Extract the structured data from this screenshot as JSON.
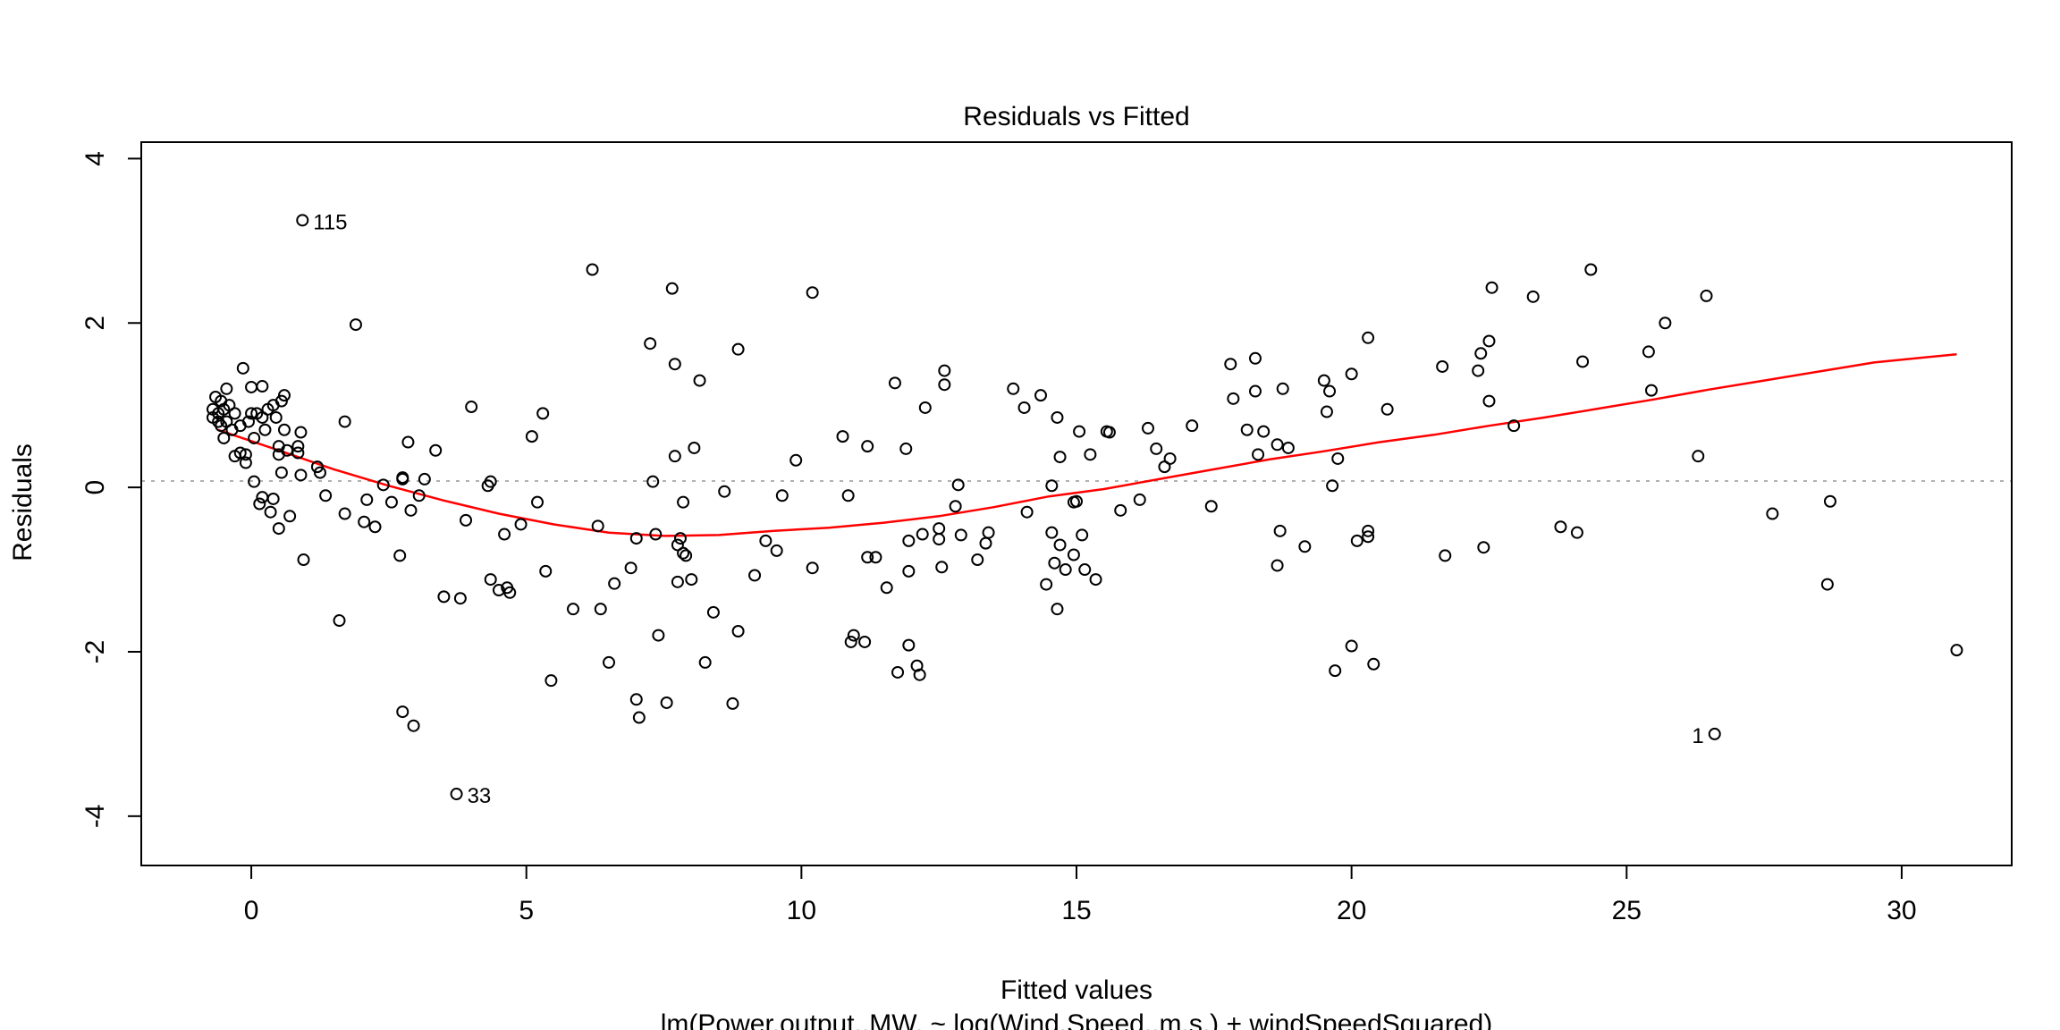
{
  "chart_data": {
    "type": "scatter",
    "title": "Residuals vs Fitted",
    "xlabel": "Fitted values",
    "ylabel": "Residuals",
    "subtitle": "lm(Power.output..MW. ~ log(Wind.Speed..m.s.) + windSpeedSquared)",
    "xlim": [
      -2,
      32
    ],
    "ylim": [
      -4.6,
      4.2
    ],
    "xticks": [
      0,
      5,
      10,
      15,
      20,
      25,
      30
    ],
    "yticks": [
      -4,
      -2,
      0,
      2,
      4
    ],
    "reference_line": 0,
    "colors": {
      "points": "#000000",
      "smoother": "#ff0000",
      "reference": "#b0b0b0"
    },
    "labeled_points": [
      {
        "label": "115",
        "x": 0.93,
        "y": 3.25,
        "side": "right"
      },
      {
        "label": "33",
        "x": 3.73,
        "y": -3.73,
        "side": "right"
      },
      {
        "label": "1",
        "x": 26.6,
        "y": -3.0,
        "side": "left"
      }
    ],
    "smoother": [
      [
        -0.6,
        0.7
      ],
      [
        0.5,
        0.45
      ],
      [
        1.5,
        0.22
      ],
      [
        2.5,
        0.02
      ],
      [
        3.5,
        -0.16
      ],
      [
        4.5,
        -0.32
      ],
      [
        5.5,
        -0.45
      ],
      [
        6.5,
        -0.55
      ],
      [
        7.5,
        -0.59
      ],
      [
        8.5,
        -0.58
      ],
      [
        9.5,
        -0.53
      ],
      [
        10.5,
        -0.49
      ],
      [
        11.5,
        -0.43
      ],
      [
        12.5,
        -0.35
      ],
      [
        13.5,
        -0.24
      ],
      [
        14.5,
        -0.11
      ],
      [
        15.5,
        -0.02
      ],
      [
        16.5,
        0.1
      ],
      [
        17.5,
        0.22
      ],
      [
        18.5,
        0.34
      ],
      [
        19.5,
        0.44
      ],
      [
        20.5,
        0.55
      ],
      [
        21.5,
        0.64
      ],
      [
        22.5,
        0.75
      ],
      [
        23.5,
        0.85
      ],
      [
        24.5,
        0.96
      ],
      [
        25.5,
        1.07
      ],
      [
        26.5,
        1.19
      ],
      [
        27.5,
        1.3
      ],
      [
        28.5,
        1.41
      ],
      [
        29.5,
        1.52
      ],
      [
        31.0,
        1.62
      ]
    ],
    "points": [
      [
        -0.7,
        0.95
      ],
      [
        -0.7,
        0.85
      ],
      [
        -0.65,
        1.1
      ],
      [
        -0.6,
        0.8
      ],
      [
        -0.6,
        0.9
      ],
      [
        -0.55,
        1.05
      ],
      [
        -0.55,
        0.75
      ],
      [
        -0.5,
        0.95
      ],
      [
        -0.5,
        0.6
      ],
      [
        -0.45,
        1.2
      ],
      [
        -0.45,
        0.8
      ],
      [
        -0.4,
        1.0
      ],
      [
        -0.35,
        0.7
      ],
      [
        -0.3,
        0.9
      ],
      [
        -0.3,
        0.38
      ],
      [
        -0.2,
        0.75
      ],
      [
        -0.2,
        0.42
      ],
      [
        -0.15,
        1.45
      ],
      [
        -0.1,
        0.3
      ],
      [
        -0.1,
        0.4
      ],
      [
        -0.05,
        0.8
      ],
      [
        0.0,
        1.22
      ],
      [
        0.0,
        0.9
      ],
      [
        0.05,
        0.6
      ],
      [
        0.05,
        0.07
      ],
      [
        0.1,
        0.9
      ],
      [
        0.15,
        -0.2
      ],
      [
        0.2,
        0.85
      ],
      [
        0.2,
        1.23
      ],
      [
        0.2,
        -0.12
      ],
      [
        0.25,
        0.7
      ],
      [
        0.3,
        0.95
      ],
      [
        0.35,
        -0.3
      ],
      [
        0.4,
        1.0
      ],
      [
        0.4,
        -0.14
      ],
      [
        0.45,
        0.85
      ],
      [
        0.5,
        0.5
      ],
      [
        0.5,
        0.4
      ],
      [
        0.5,
        -0.5
      ],
      [
        0.55,
        0.18
      ],
      [
        0.55,
        1.05
      ],
      [
        0.6,
        1.12
      ],
      [
        0.6,
        0.7
      ],
      [
        0.65,
        0.45
      ],
      [
        0.7,
        -0.35
      ],
      [
        0.85,
        0.5
      ],
      [
        0.85,
        0.42
      ],
      [
        0.9,
        0.15
      ],
      [
        0.9,
        0.67
      ],
      [
        0.93,
        3.25
      ],
      [
        0.95,
        -0.88
      ],
      [
        1.2,
        0.25
      ],
      [
        1.25,
        0.18
      ],
      [
        1.35,
        -0.1
      ],
      [
        1.6,
        -1.62
      ],
      [
        1.7,
        0.8
      ],
      [
        1.7,
        -0.32
      ],
      [
        1.9,
        1.98
      ],
      [
        2.05,
        -0.42
      ],
      [
        2.1,
        -0.15
      ],
      [
        2.25,
        -0.48
      ],
      [
        2.4,
        0.03
      ],
      [
        2.55,
        -0.18
      ],
      [
        2.7,
        -0.83
      ],
      [
        2.75,
        0.12
      ],
      [
        2.75,
        0.1
      ],
      [
        2.75,
        -2.73
      ],
      [
        2.85,
        0.55
      ],
      [
        2.9,
        -0.28
      ],
      [
        2.95,
        -2.9
      ],
      [
        3.05,
        -0.1
      ],
      [
        3.15,
        0.1
      ],
      [
        3.35,
        0.45
      ],
      [
        3.5,
        -1.33
      ],
      [
        3.73,
        -3.73
      ],
      [
        3.8,
        -1.35
      ],
      [
        3.9,
        -0.4
      ],
      [
        4.0,
        0.98
      ],
      [
        4.3,
        0.02
      ],
      [
        4.35,
        0.07
      ],
      [
        4.35,
        -1.12
      ],
      [
        4.5,
        -1.25
      ],
      [
        4.6,
        -0.57
      ],
      [
        4.65,
        -1.22
      ],
      [
        4.7,
        -1.28
      ],
      [
        4.9,
        -0.45
      ],
      [
        5.1,
        0.62
      ],
      [
        5.2,
        -0.18
      ],
      [
        5.3,
        0.9
      ],
      [
        5.35,
        -1.02
      ],
      [
        5.45,
        -2.35
      ],
      [
        5.85,
        -1.48
      ],
      [
        6.2,
        2.65
      ],
      [
        6.3,
        -0.47
      ],
      [
        6.35,
        -1.48
      ],
      [
        6.5,
        -2.13
      ],
      [
        6.6,
        -1.17
      ],
      [
        6.9,
        -0.98
      ],
      [
        7.0,
        -0.62
      ],
      [
        7.0,
        -2.58
      ],
      [
        7.05,
        -2.8
      ],
      [
        7.25,
        1.75
      ],
      [
        7.3,
        0.07
      ],
      [
        7.35,
        -0.57
      ],
      [
        7.4,
        -1.8
      ],
      [
        7.55,
        -2.62
      ],
      [
        7.65,
        2.42
      ],
      [
        7.7,
        1.5
      ],
      [
        7.7,
        0.38
      ],
      [
        7.75,
        -1.15
      ],
      [
        7.75,
        -0.7
      ],
      [
        7.8,
        -0.62
      ],
      [
        7.85,
        -0.18
      ],
      [
        7.85,
        -0.8
      ],
      [
        7.9,
        -0.83
      ],
      [
        8.0,
        -1.12
      ],
      [
        8.05,
        0.48
      ],
      [
        8.15,
        1.3
      ],
      [
        8.25,
        -2.13
      ],
      [
        8.4,
        -1.52
      ],
      [
        8.6,
        -0.05
      ],
      [
        8.75,
        -2.63
      ],
      [
        8.85,
        -1.75
      ],
      [
        8.85,
        1.68
      ],
      [
        9.15,
        -1.07
      ],
      [
        9.35,
        -0.65
      ],
      [
        9.55,
        -0.77
      ],
      [
        9.65,
        -0.1
      ],
      [
        9.9,
        0.33
      ],
      [
        10.2,
        2.37
      ],
      [
        10.2,
        -0.98
      ],
      [
        10.75,
        0.62
      ],
      [
        10.85,
        -0.1
      ],
      [
        10.9,
        -1.88
      ],
      [
        10.95,
        -1.8
      ],
      [
        11.15,
        -1.88
      ],
      [
        11.2,
        0.5
      ],
      [
        11.2,
        -0.85
      ],
      [
        11.35,
        -0.85
      ],
      [
        11.55,
        -1.22
      ],
      [
        11.7,
        1.27
      ],
      [
        11.75,
        -2.25
      ],
      [
        11.9,
        0.47
      ],
      [
        11.95,
        -1.02
      ],
      [
        11.95,
        -0.65
      ],
      [
        11.95,
        -1.92
      ],
      [
        12.1,
        -2.17
      ],
      [
        12.15,
        -2.28
      ],
      [
        12.2,
        -0.57
      ],
      [
        12.25,
        0.97
      ],
      [
        12.5,
        -0.63
      ],
      [
        12.5,
        -0.5
      ],
      [
        12.55,
        -0.97
      ],
      [
        12.6,
        1.42
      ],
      [
        12.6,
        1.25
      ],
      [
        12.8,
        -0.23
      ],
      [
        12.85,
        0.03
      ],
      [
        12.9,
        -0.58
      ],
      [
        13.2,
        -0.88
      ],
      [
        13.35,
        -0.68
      ],
      [
        13.4,
        -0.55
      ],
      [
        13.85,
        1.2
      ],
      [
        14.05,
        0.97
      ],
      [
        14.1,
        -0.3
      ],
      [
        14.35,
        1.12
      ],
      [
        14.45,
        -1.18
      ],
      [
        14.55,
        -0.55
      ],
      [
        14.55,
        0.02
      ],
      [
        14.6,
        -0.92
      ],
      [
        14.65,
        -1.48
      ],
      [
        14.65,
        0.85
      ],
      [
        14.7,
        0.37
      ],
      [
        14.7,
        -0.7
      ],
      [
        14.8,
        -1.0
      ],
      [
        14.95,
        -0.82
      ],
      [
        14.95,
        -0.18
      ],
      [
        15.0,
        -0.17
      ],
      [
        15.05,
        0.68
      ],
      [
        15.1,
        -0.58
      ],
      [
        15.15,
        -1.0
      ],
      [
        15.25,
        0.4
      ],
      [
        15.35,
        -1.12
      ],
      [
        15.55,
        0.68
      ],
      [
        15.6,
        0.67
      ],
      [
        15.8,
        -0.28
      ],
      [
        16.15,
        -0.15
      ],
      [
        16.3,
        0.72
      ],
      [
        16.45,
        0.47
      ],
      [
        16.6,
        0.25
      ],
      [
        16.7,
        0.35
      ],
      [
        17.1,
        0.75
      ],
      [
        17.45,
        -0.23
      ],
      [
        17.8,
        1.5
      ],
      [
        17.85,
        1.08
      ],
      [
        18.1,
        0.7
      ],
      [
        18.25,
        1.57
      ],
      [
        18.25,
        1.17
      ],
      [
        18.3,
        0.4
      ],
      [
        18.4,
        0.68
      ],
      [
        18.65,
        -0.95
      ],
      [
        18.65,
        0.52
      ],
      [
        18.7,
        -0.53
      ],
      [
        18.75,
        1.2
      ],
      [
        18.85,
        0.48
      ],
      [
        19.15,
        -0.72
      ],
      [
        19.5,
        1.3
      ],
      [
        19.55,
        0.92
      ],
      [
        19.6,
        1.17
      ],
      [
        19.65,
        0.02
      ],
      [
        19.7,
        -2.23
      ],
      [
        19.75,
        0.35
      ],
      [
        20.0,
        1.38
      ],
      [
        20.0,
        -1.93
      ],
      [
        20.1,
        -0.65
      ],
      [
        20.3,
        1.82
      ],
      [
        20.3,
        -0.53
      ],
      [
        20.3,
        -0.6
      ],
      [
        20.4,
        -2.15
      ],
      [
        20.65,
        0.95
      ],
      [
        21.65,
        1.47
      ],
      [
        21.7,
        -0.83
      ],
      [
        22.3,
        1.42
      ],
      [
        22.35,
        1.63
      ],
      [
        22.4,
        -0.73
      ],
      [
        22.5,
        1.78
      ],
      [
        22.5,
        1.05
      ],
      [
        22.55,
        2.43
      ],
      [
        22.95,
        0.75
      ],
      [
        23.3,
        2.32
      ],
      [
        23.8,
        -0.48
      ],
      [
        24.1,
        -0.55
      ],
      [
        24.2,
        1.53
      ],
      [
        24.35,
        2.65
      ],
      [
        25.4,
        1.65
      ],
      [
        25.45,
        1.18
      ],
      [
        25.7,
        2.0
      ],
      [
        26.3,
        0.38
      ],
      [
        26.45,
        2.33
      ],
      [
        26.6,
        -3.0
      ],
      [
        27.65,
        -0.32
      ],
      [
        28.65,
        -1.18
      ],
      [
        28.7,
        -0.17
      ],
      [
        31.0,
        -1.98
      ]
    ]
  }
}
